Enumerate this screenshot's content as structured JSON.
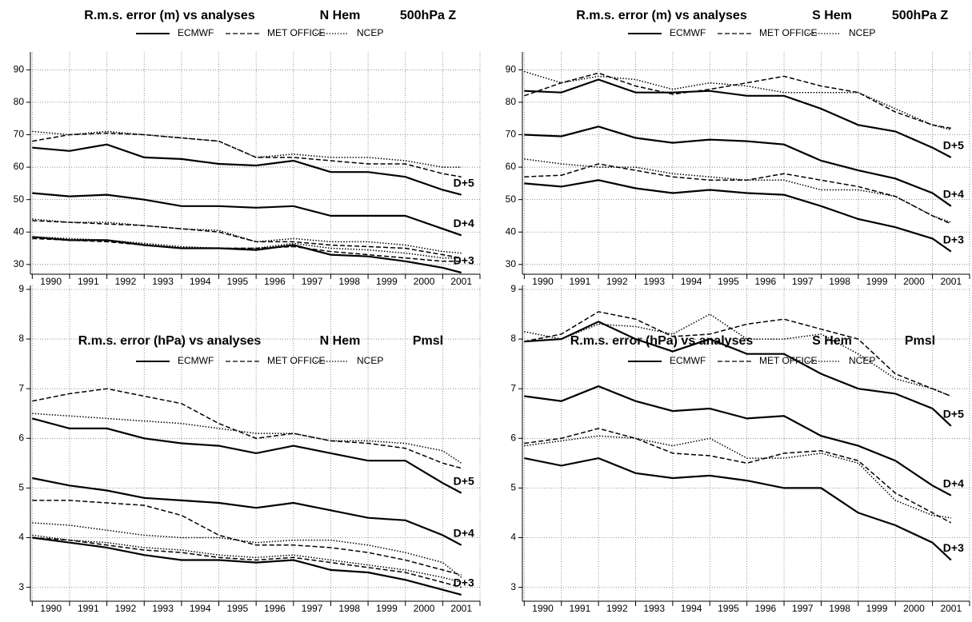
{
  "chart_data": [
    {
      "type": "line",
      "title": "R.m.s. error (m) vs analyses",
      "region": "N Hem",
      "field": "500hPa Z",
      "x": [
        1990,
        1991,
        1992,
        1993,
        1994,
        1995,
        1996,
        1997,
        1998,
        1999,
        2000,
        2001,
        2001.5
      ],
      "xlim": [
        1989.95,
        2002
      ],
      "ylim": [
        27,
        95.5
      ],
      "yticks": [
        30,
        40,
        50,
        60,
        70,
        80,
        90
      ],
      "xticks": [
        {
          "value": 1990.5,
          "label": "1990"
        },
        {
          "value": 1991.5,
          "label": "1991"
        },
        {
          "value": 1992.5,
          "label": "1992"
        },
        {
          "value": 1993.5,
          "label": "1993"
        },
        {
          "value": 1994.5,
          "label": "1994"
        },
        {
          "value": 1995.5,
          "label": "1995"
        },
        {
          "value": 1996.5,
          "label": "1996"
        },
        {
          "value": 1997.5,
          "label": "1997"
        },
        {
          "value": 1998.5,
          "label": "1998"
        },
        {
          "value": 1999.5,
          "label": "1999"
        },
        {
          "value": 2000.5,
          "label": "2000"
        },
        {
          "value": 2001.5,
          "label": "2001"
        }
      ],
      "xgrid": [
        1990,
        1991,
        1992,
        1993,
        1994,
        1995,
        1996,
        1997,
        1998,
        1999,
        2000,
        2001,
        2002
      ],
      "grid": true,
      "series": [
        {
          "name": "ECMWF",
          "style": "solid",
          "color": "#000000",
          "label": "D+5",
          "values": [
            66,
            65,
            67,
            63,
            62.5,
            61,
            60.5,
            62,
            58.5,
            58.5,
            57,
            53,
            51.5
          ]
        },
        {
          "name": "MET OFFICE",
          "style": "dashed",
          "color": "#000000",
          "values": [
            68,
            70,
            70.5,
            70,
            69,
            68,
            63,
            63,
            62,
            61,
            61,
            58,
            57
          ]
        },
        {
          "name": "NCEP",
          "style": "dotted",
          "color": "#000000",
          "values": [
            71,
            70,
            71,
            70,
            69,
            68,
            63,
            64,
            63,
            63,
            62,
            60,
            60
          ]
        },
        {
          "name": "ECMWF",
          "style": "solid",
          "color": "#000000",
          "label": "D+4",
          "values": [
            52,
            51,
            51.5,
            50,
            48,
            48,
            47.5,
            48,
            45,
            45,
            45,
            41,
            39
          ]
        },
        {
          "name": "MET OFFICE",
          "style": "dashed",
          "color": "#000000",
          "values": [
            43.5,
            43,
            42.5,
            42,
            41,
            40,
            37,
            37,
            36,
            35.5,
            35,
            33,
            32
          ]
        },
        {
          "name": "NCEP",
          "style": "dotted",
          "color": "#000000",
          "values": [
            44,
            43,
            43,
            42,
            41,
            40.5,
            37,
            38,
            37,
            37,
            36,
            34,
            33.5
          ]
        },
        {
          "name": "ECMWF",
          "style": "solid",
          "color": "#000000",
          "label": "D+3",
          "values": [
            38.5,
            37.5,
            37.5,
            36,
            35,
            35,
            34.5,
            36,
            33,
            32.5,
            31,
            29,
            27.5
          ]
        },
        {
          "name": "MET OFFICE",
          "style": "dashed",
          "color": "#000000",
          "values": [
            38,
            37.5,
            37,
            36,
            35,
            35,
            35,
            35.5,
            34,
            33,
            32,
            31,
            31
          ]
        },
        {
          "name": "NCEP",
          "style": "dotted",
          "color": "#000000",
          "values": [
            38.5,
            38,
            37.5,
            36.5,
            35.5,
            35,
            35,
            36.5,
            35,
            34.5,
            33.5,
            32,
            32
          ]
        }
      ]
    },
    {
      "type": "line",
      "title": "R.m.s. error (m) vs analyses",
      "region": "S Hem",
      "field": "500hPa Z",
      "x": [
        1990,
        1991,
        1992,
        1993,
        1994,
        1995,
        1996,
        1997,
        1998,
        1999,
        2000,
        2001,
        2001.5
      ],
      "xlim": [
        1989.95,
        2002
      ],
      "ylim": [
        27,
        95.5
      ],
      "yticks": [
        30,
        40,
        50,
        60,
        70,
        80,
        90
      ],
      "xticks": [
        {
          "value": 1990.5,
          "label": "1990"
        },
        {
          "value": 1991.5,
          "label": "1991"
        },
        {
          "value": 1992.5,
          "label": "1992"
        },
        {
          "value": 1993.5,
          "label": "1993"
        },
        {
          "value": 1994.5,
          "label": "1994"
        },
        {
          "value": 1995.5,
          "label": "1995"
        },
        {
          "value": 1996.5,
          "label": "1996"
        },
        {
          "value": 1997.5,
          "label": "1997"
        },
        {
          "value": 1998.5,
          "label": "1998"
        },
        {
          "value": 1999.5,
          "label": "1999"
        },
        {
          "value": 2000.5,
          "label": "2000"
        },
        {
          "value": 2001.5,
          "label": "2001"
        }
      ],
      "xgrid": [
        1990,
        1991,
        1992,
        1993,
        1994,
        1995,
        1996,
        1997,
        1998,
        1999,
        2000,
        2001,
        2002
      ],
      "grid": true,
      "series": [
        {
          "name": "ECMWF",
          "style": "solid",
          "color": "#000000",
          "label": "D+5",
          "values": [
            83.5,
            83,
            87,
            83,
            83,
            83.5,
            82,
            82,
            78,
            73,
            71,
            66,
            63
          ]
        },
        {
          "name": "MET OFFICE",
          "style": "dashed",
          "color": "#000000",
          "values": [
            82,
            86,
            89,
            85,
            82.5,
            84,
            86,
            88,
            85,
            83,
            77,
            73,
            72
          ]
        },
        {
          "name": "NCEP",
          "style": "dotted",
          "color": "#000000",
          "values": [
            89.5,
            86,
            88,
            87,
            84,
            86,
            85,
            83,
            83,
            83,
            78,
            73,
            71.5
          ]
        },
        {
          "name": "ECMWF",
          "style": "solid",
          "color": "#000000",
          "label": "D+4",
          "values": [
            70,
            69.5,
            72.5,
            69,
            67.5,
            68.5,
            68,
            67,
            62,
            59,
            56.5,
            52,
            48
          ]
        },
        {
          "name": "MET OFFICE",
          "style": "dashed",
          "color": "#000000",
          "values": [
            57,
            57.5,
            61,
            59,
            57,
            56,
            56,
            58,
            56,
            54,
            51,
            45,
            42.5
          ]
        },
        {
          "name": "NCEP",
          "style": "dotted",
          "color": "#000000",
          "values": [
            62.5,
            61,
            60,
            60,
            58,
            57,
            56,
            56,
            53,
            53,
            51,
            45,
            43
          ]
        },
        {
          "name": "ECMWF",
          "style": "solid",
          "color": "#000000",
          "label": "D+3",
          "values": [
            55,
            54,
            56,
            53.5,
            52,
            53,
            52,
            51.5,
            48,
            44,
            41.5,
            38,
            34
          ]
        }
      ]
    },
    {
      "type": "line",
      "title": "R.m.s. error (hPa) vs analyses",
      "region": "N Hem",
      "field": "Pmsl",
      "x": [
        1990,
        1991,
        1992,
        1993,
        1994,
        1995,
        1996,
        1997,
        1998,
        1999,
        2000,
        2001,
        2001.5
      ],
      "xlim": [
        1989.95,
        2002
      ],
      "ylim": [
        2.72,
        9.08
      ],
      "yticks": [
        3,
        4,
        5,
        6,
        7,
        8,
        9
      ],
      "xticks": [
        {
          "value": 1990.5,
          "label": "1990"
        },
        {
          "value": 1991.5,
          "label": "1991"
        },
        {
          "value": 1992.5,
          "label": "1992"
        },
        {
          "value": 1993.5,
          "label": "1993"
        },
        {
          "value": 1994.5,
          "label": "1994"
        },
        {
          "value": 1995.5,
          "label": "1995"
        },
        {
          "value": 1996.5,
          "label": "1996"
        },
        {
          "value": 1997.5,
          "label": "1997"
        },
        {
          "value": 1998.5,
          "label": "1998"
        },
        {
          "value": 1999.5,
          "label": "1999"
        },
        {
          "value": 2000.5,
          "label": "2000"
        },
        {
          "value": 2001.5,
          "label": "2001"
        }
      ],
      "xgrid": [
        1990,
        1991,
        1992,
        1993,
        1994,
        1995,
        1996,
        1997,
        1998,
        1999,
        2000,
        2001,
        2002
      ],
      "grid": true,
      "series": [
        {
          "name": "ECMWF",
          "style": "solid",
          "color": "#000000",
          "label": "D+5",
          "values": [
            6.4,
            6.2,
            6.2,
            6.0,
            5.9,
            5.85,
            5.7,
            5.85,
            5.7,
            5.55,
            5.55,
            5.1,
            4.9
          ]
        },
        {
          "name": "MET OFFICE",
          "style": "dashed",
          "color": "#000000",
          "values": [
            6.75,
            6.9,
            7.0,
            6.85,
            6.7,
            6.3,
            6.0,
            6.1,
            5.95,
            5.9,
            5.8,
            5.5,
            5.4
          ]
        },
        {
          "name": "NCEP",
          "style": "dotted",
          "color": "#000000",
          "values": [
            6.5,
            6.45,
            6.4,
            6.35,
            6.3,
            6.2,
            6.1,
            6.1,
            5.95,
            5.95,
            5.9,
            5.75,
            5.5
          ]
        },
        {
          "name": "ECMWF",
          "style": "solid",
          "color": "#000000",
          "label": "D+4",
          "values": [
            5.2,
            5.05,
            4.95,
            4.8,
            4.75,
            4.7,
            4.6,
            4.7,
            4.55,
            4.4,
            4.35,
            4.05,
            3.85
          ]
        },
        {
          "name": "MET OFFICE",
          "style": "dashed",
          "color": "#000000",
          "values": [
            4.75,
            4.75,
            4.7,
            4.65,
            4.45,
            4.05,
            3.85,
            3.85,
            3.8,
            3.7,
            3.55,
            3.35,
            3.25
          ]
        },
        {
          "name": "NCEP",
          "style": "dotted",
          "color": "#000000",
          "values": [
            4.3,
            4.25,
            4.15,
            4.05,
            4.0,
            4.0,
            3.9,
            3.95,
            3.95,
            3.85,
            3.7,
            3.5,
            3.2
          ]
        },
        {
          "name": "ECMWF",
          "style": "solid",
          "color": "#000000",
          "label": "D+3",
          "values": [
            4.0,
            3.9,
            3.8,
            3.65,
            3.55,
            3.55,
            3.5,
            3.55,
            3.35,
            3.3,
            3.15,
            2.95,
            2.85
          ]
        },
        {
          "name": "MET OFFICE",
          "style": "dashed",
          "color": "#000000",
          "values": [
            4.0,
            3.95,
            3.85,
            3.75,
            3.7,
            3.6,
            3.55,
            3.6,
            3.5,
            3.4,
            3.3,
            3.1,
            3.0
          ]
        },
        {
          "name": "NCEP",
          "style": "dotted",
          "color": "#000000",
          "values": [
            4.05,
            3.95,
            3.9,
            3.8,
            3.75,
            3.65,
            3.6,
            3.65,
            3.55,
            3.45,
            3.35,
            3.2,
            3.1
          ]
        }
      ]
    },
    {
      "type": "line",
      "title": "R.m.s. error (hPa) vs analyses",
      "region": "S Hem",
      "field": "Pmsl",
      "x": [
        1990,
        1991,
        1992,
        1993,
        1994,
        1995,
        1996,
        1997,
        1998,
        1999,
        2000,
        2001,
        2001.5
      ],
      "xlim": [
        1989.95,
        2002
      ],
      "ylim": [
        2.72,
        9.08
      ],
      "yticks": [
        3,
        4,
        5,
        6,
        7,
        8,
        9
      ],
      "xticks": [
        {
          "value": 1990.5,
          "label": "1990"
        },
        {
          "value": 1991.5,
          "label": "1991"
        },
        {
          "value": 1992.5,
          "label": "1992"
        },
        {
          "value": 1993.5,
          "label": "1993"
        },
        {
          "value": 1994.5,
          "label": "1994"
        },
        {
          "value": 1995.5,
          "label": "1995"
        },
        {
          "value": 1996.5,
          "label": "1996"
        },
        {
          "value": 1997.5,
          "label": "1997"
        },
        {
          "value": 1998.5,
          "label": "1998"
        },
        {
          "value": 1999.5,
          "label": "1999"
        },
        {
          "value": 2000.5,
          "label": "2000"
        },
        {
          "value": 2001.5,
          "label": "2001"
        }
      ],
      "xgrid": [
        1990,
        1991,
        1992,
        1993,
        1994,
        1995,
        1996,
        1997,
        1998,
        1999,
        2000,
        2001,
        2002
      ],
      "grid": true,
      "series": [
        {
          "name": "ECMWF",
          "style": "solid",
          "color": "#000000",
          "label": "D+5",
          "values": [
            7.95,
            8.0,
            8.35,
            8.0,
            7.75,
            8.0,
            7.7,
            7.7,
            7.3,
            7.0,
            6.9,
            6.6,
            6.25
          ]
        },
        {
          "name": "MET OFFICE",
          "style": "dashed",
          "color": "#000000",
          "values": [
            7.95,
            8.1,
            8.55,
            8.4,
            8.05,
            8.1,
            8.3,
            8.4,
            8.2,
            8.0,
            7.3,
            7.0,
            6.85
          ]
        },
        {
          "name": "NCEP",
          "style": "dotted",
          "color": "#000000",
          "values": [
            8.15,
            8.0,
            8.3,
            8.25,
            8.1,
            8.5,
            8.0,
            8.0,
            8.1,
            7.7,
            7.2,
            7.0,
            6.85
          ]
        },
        {
          "name": "ECMWF",
          "style": "solid",
          "color": "#000000",
          "label": "D+4",
          "values": [
            6.85,
            6.75,
            7.05,
            6.75,
            6.55,
            6.6,
            6.4,
            6.45,
            6.05,
            5.85,
            5.55,
            5.05,
            4.85
          ]
        },
        {
          "name": "MET OFFICE",
          "style": "dashed",
          "color": "#000000",
          "values": [
            5.9,
            6.0,
            6.2,
            6.0,
            5.7,
            5.65,
            5.5,
            5.7,
            5.75,
            5.55,
            4.9,
            4.5,
            4.3
          ]
        },
        {
          "name": "NCEP",
          "style": "dotted",
          "color": "#000000",
          "values": [
            5.85,
            5.95,
            6.05,
            6.0,
            5.85,
            6.0,
            5.6,
            5.6,
            5.7,
            5.5,
            4.75,
            4.45,
            4.4
          ]
        },
        {
          "name": "ECMWF",
          "style": "solid",
          "color": "#000000",
          "label": "D+3",
          "values": [
            5.6,
            5.45,
            5.6,
            5.3,
            5.2,
            5.25,
            5.15,
            5.0,
            5.0,
            4.5,
            4.25,
            3.9,
            3.55
          ]
        }
      ]
    }
  ]
}
